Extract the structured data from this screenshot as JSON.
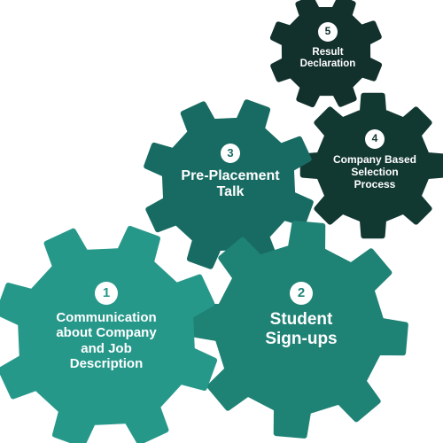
{
  "colors": {
    "gear_1": "#26988a",
    "gear_2": "#1e8275",
    "gear_3": "#176b62",
    "gear_4": "#123832",
    "gear_5": "#12302c",
    "badge_bg": "#ffffff",
    "text": "#ffffff"
  },
  "steps": [
    {
      "number": "1",
      "title": "Communication\nabout Company\nand Job\nDescription"
    },
    {
      "number": "2",
      "title": "Student\nSign-ups"
    },
    {
      "number": "3",
      "title": "Pre-Placement\nTalk"
    },
    {
      "number": "4",
      "title": "Company Based\nSelection\nProcess"
    },
    {
      "number": "5",
      "title": "Result\nDeclaration"
    }
  ]
}
